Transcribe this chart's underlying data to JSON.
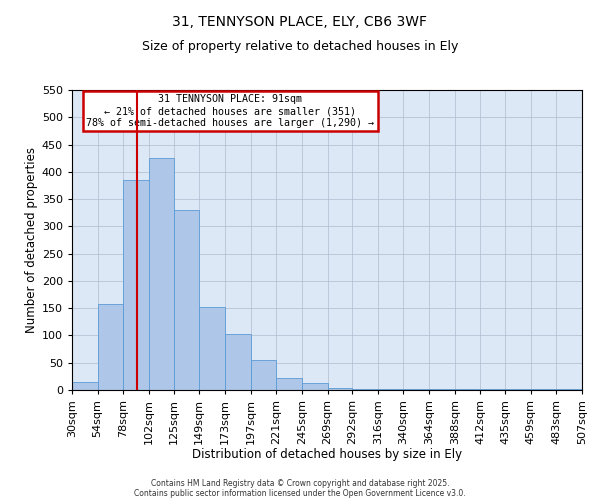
{
  "title_line1": "31, TENNYSON PLACE, ELY, CB6 3WF",
  "title_line2": "Size of property relative to detached houses in Ely",
  "xlabel": "Distribution of detached houses by size in Ely",
  "ylabel": "Number of detached properties",
  "bin_edges": [
    30,
    54,
    78,
    102,
    125,
    149,
    173,
    197,
    221,
    245,
    269,
    292,
    316,
    340,
    364,
    388,
    412,
    435,
    459,
    483,
    507
  ],
  "bar_heights": [
    15,
    157,
    385,
    425,
    330,
    153,
    102,
    55,
    22,
    13,
    3,
    2,
    2,
    2,
    2,
    2,
    2,
    2,
    2,
    2
  ],
  "bar_color": "#aec6e8",
  "bar_edgecolor": "#5b9bd5",
  "property_size": 91,
  "vline_color": "#cc0000",
  "annotation_title": "31 TENNYSON PLACE: 91sqm",
  "annotation_line2": "← 21% of detached houses are smaller (351)",
  "annotation_line3": "78% of semi-detached houses are larger (1,290) →",
  "annotation_box_edgecolor": "#cc0000",
  "annotation_box_facecolor": "#ffffff",
  "ylim": [
    0,
    550
  ],
  "background_color": "#dce8f5",
  "tick_labels": [
    "30sqm",
    "54sqm",
    "78sqm",
    "102sqm",
    "125sqm",
    "149sqm",
    "173sqm",
    "197sqm",
    "221sqm",
    "245sqm",
    "269sqm",
    "292sqm",
    "316sqm",
    "340sqm",
    "364sqm",
    "388sqm",
    "412sqm",
    "435sqm",
    "459sqm",
    "483sqm",
    "507sqm"
  ],
  "footer_line1": "Contains HM Land Registry data © Crown copyright and database right 2025.",
  "footer_line2": "Contains public sector information licensed under the Open Government Licence v3.0.",
  "yticks": [
    0,
    50,
    100,
    150,
    200,
    250,
    300,
    350,
    400,
    450,
    500,
    550
  ]
}
